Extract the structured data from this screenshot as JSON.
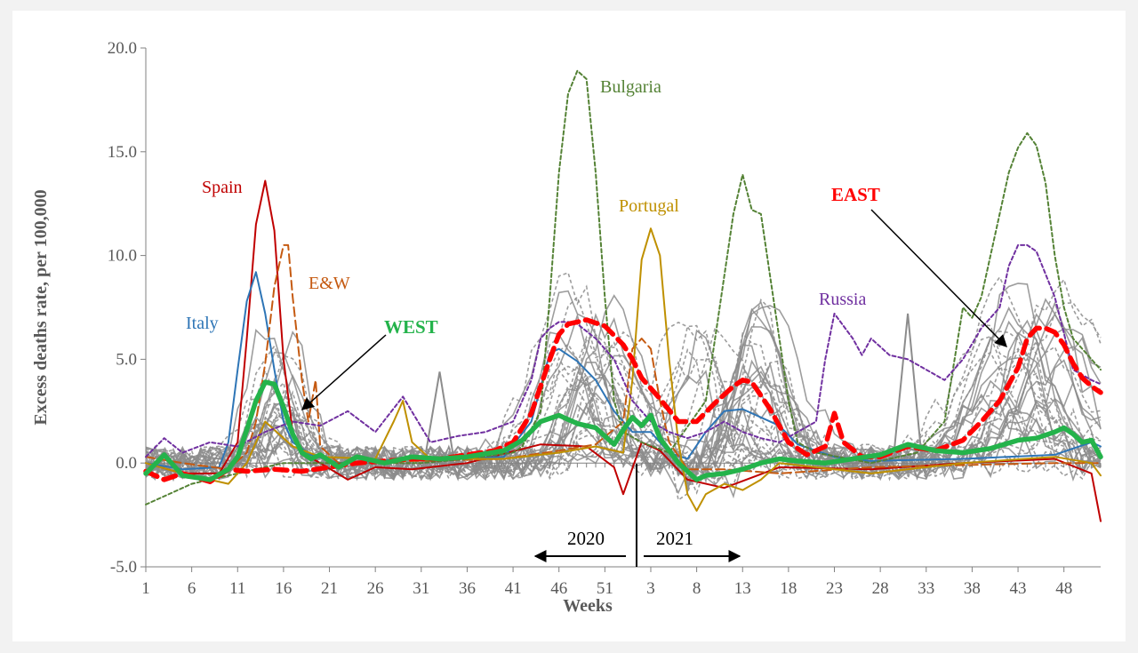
{
  "chart_data": {
    "type": "line",
    "xlabel": "Weeks",
    "ylabel": "Excess deaths rate, per 100,000",
    "ylim": [
      -5,
      20
    ],
    "y_ticks": [
      "-5.0",
      "0.0",
      "5.0",
      "10.0",
      "15.0",
      "20.0"
    ],
    "x_tick_labels": [
      "1",
      "6",
      "11",
      "16",
      "21",
      "26",
      "31",
      "36",
      "41",
      "46",
      "51",
      "3",
      "8",
      "13",
      "18",
      "23",
      "28",
      "33",
      "38",
      "43",
      "48"
    ],
    "x_ticks_at": [
      1,
      6,
      11,
      16,
      21,
      26,
      31,
      36,
      41,
      46,
      51,
      56,
      61,
      66,
      71,
      76,
      81,
      86,
      91,
      96,
      101
    ],
    "x_max": 105,
    "year_split_at": 54,
    "year_labels": [
      "2020",
      "2021"
    ],
    "annotations": {
      "spain": "Spain",
      "italy": "Italy",
      "ew": "E&W",
      "west": "WEST",
      "bulgaria": "Bulgaria",
      "portugal": "Portugal",
      "russia": "Russia",
      "east": "EAST"
    },
    "colors": {
      "background_gray": "#f2f2f2",
      "axis": "#808080",
      "gray_series": "#8c8c8c",
      "spain": "#c00000",
      "italy": "#2e75b6",
      "ew": "#c55a11",
      "west": "#24b34b",
      "east": "#ff0000",
      "bulgaria": "#548235",
      "portugal": "#bf9000",
      "russia": "#7030a0"
    },
    "series": [
      {
        "name": "WEST",
        "style": "thick-solid",
        "x": [
          1,
          3,
          5,
          8,
          10,
          11,
          12,
          13,
          14,
          15,
          16,
          17,
          18,
          19,
          20,
          22,
          24,
          27,
          30,
          33,
          36,
          40,
          42,
          44,
          46,
          48,
          50,
          52,
          53,
          54,
          55,
          56,
          57,
          59,
          61,
          62,
          64,
          66,
          68,
          70,
          72,
          75,
          78,
          81,
          84,
          87,
          90,
          93,
          96,
          98,
          100,
          101,
          102,
          103,
          104,
          105
        ],
        "y": [
          -0.5,
          0.4,
          -0.6,
          -0.8,
          -0.3,
          0.3,
          1.6,
          3.0,
          3.9,
          3.8,
          2.7,
          1.4,
          0.5,
          0.2,
          0.4,
          -0.2,
          0.3,
          0.0,
          0.3,
          0.2,
          0.3,
          0.6,
          1.1,
          2.0,
          2.3,
          1.9,
          1.7,
          0.9,
          1.6,
          2.2,
          1.8,
          2.3,
          1.2,
          0.0,
          -0.8,
          -0.6,
          -0.5,
          -0.3,
          0.0,
          0.2,
          0.1,
          0.0,
          0.2,
          0.4,
          0.9,
          0.6,
          0.5,
          0.7,
          1.1,
          1.2,
          1.5,
          1.7,
          1.4,
          1.0,
          1.1,
          0.3
        ]
      },
      {
        "name": "EAST",
        "style": "thick-dashed",
        "x": [
          1,
          3,
          5,
          8,
          10,
          12,
          15,
          18,
          21,
          24,
          27,
          30,
          33,
          36,
          39,
          41,
          43,
          45,
          46,
          47,
          48,
          49,
          51,
          53,
          54,
          55,
          57,
          59,
          61,
          63,
          65,
          66,
          67,
          69,
          71,
          73,
          75,
          76,
          77,
          79,
          81,
          84,
          87,
          90,
          92,
          94,
          96,
          97,
          98,
          99,
          100,
          101,
          102,
          103,
          104,
          105
        ],
        "y": [
          -0.4,
          -0.8,
          -0.5,
          -0.9,
          -0.3,
          -0.4,
          -0.3,
          -0.4,
          -0.2,
          0.0,
          0.1,
          0.2,
          0.2,
          0.4,
          0.6,
          1.0,
          2.4,
          5.0,
          6.2,
          6.7,
          6.8,
          6.9,
          6.6,
          5.7,
          5.0,
          4.1,
          3.1,
          2.0,
          2.0,
          2.9,
          3.7,
          4.0,
          3.9,
          2.6,
          1.0,
          0.4,
          0.8,
          2.4,
          1.0,
          0.3,
          0.3,
          0.8,
          0.6,
          1.1,
          2.0,
          3.0,
          4.6,
          6.0,
          6.5,
          6.5,
          6.3,
          5.7,
          4.8,
          4.1,
          3.7,
          3.4
        ]
      },
      {
        "name": "Spain",
        "style": "solid",
        "x": [
          1,
          5,
          9,
          11,
          12,
          13,
          14,
          15,
          16,
          17,
          18,
          20,
          23,
          26,
          30,
          36,
          44,
          49,
          52,
          53,
          55,
          57,
          60,
          64,
          70,
          80,
          90,
          100,
          104,
          105
        ],
        "y": [
          0,
          -0.5,
          -0.5,
          1.0,
          6.0,
          11.5,
          13.6,
          11.2,
          5.0,
          1.5,
          0.5,
          0.0,
          -0.8,
          -0.2,
          -0.3,
          0.0,
          0.9,
          0.8,
          -0.2,
          -1.5,
          1.0,
          0.6,
          -0.8,
          -1.2,
          -0.2,
          -0.3,
          0.0,
          0.2,
          -0.5,
          -2.8
        ]
      },
      {
        "name": "Italy",
        "style": "solid",
        "x": [
          1,
          5,
          9,
          10,
          11,
          12,
          13,
          14,
          15,
          16,
          17,
          19,
          22,
          30,
          40,
          43,
          45,
          46,
          48,
          50,
          52,
          54,
          56,
          58,
          60,
          62,
          64,
          66,
          68,
          70,
          72,
          76,
          80,
          90,
          100,
          104,
          105
        ],
        "y": [
          0,
          -0.3,
          -0.2,
          1.0,
          4.5,
          7.8,
          9.2,
          7.2,
          4.5,
          2.0,
          1.0,
          0.4,
          0.0,
          0.2,
          0.3,
          2.0,
          5.3,
          5.5,
          4.9,
          4.0,
          2.5,
          1.5,
          1.5,
          0.5,
          0.2,
          1.5,
          2.5,
          2.6,
          2.2,
          1.8,
          0.9,
          0.3,
          0.1,
          0.2,
          0.4,
          1.0,
          0.8
        ]
      },
      {
        "name": "E&W",
        "style": "long-dashed",
        "x": [
          1,
          5,
          10,
          12,
          13,
          14,
          15,
          16,
          16.5,
          17,
          18,
          18.7,
          19.5,
          20,
          22,
          30,
          40,
          46,
          50,
          53,
          54,
          55,
          56,
          57,
          58,
          60,
          64,
          70,
          80,
          90,
          100,
          105
        ],
        "y": [
          0.3,
          0,
          -0.3,
          0.5,
          2.0,
          4.8,
          8.5,
          10.5,
          10.5,
          8.0,
          4.0,
          2.0,
          4.0,
          0.8,
          0.0,
          0.1,
          0.2,
          0.6,
          0.9,
          2.0,
          5.5,
          6.0,
          5.5,
          3.0,
          1.0,
          -0.3,
          -0.3,
          -0.5,
          -0.2,
          -0.1,
          0.0,
          0.0
        ]
      },
      {
        "name": "Bulgaria",
        "style": "dashed",
        "x": [
          1,
          6,
          11,
          16,
          21,
          26,
          31,
          36,
          41,
          42,
          44,
          45,
          46,
          47,
          48,
          49,
          50,
          51,
          52,
          53,
          55,
          58,
          62,
          63,
          64,
          65,
          66,
          67,
          68,
          69,
          70,
          71,
          72,
          74,
          80,
          85,
          88,
          90,
          91,
          92,
          94,
          95,
          96,
          97,
          98,
          99,
          100,
          101,
          102,
          104,
          105
        ],
        "y": [
          -2.0,
          -1.0,
          -0.5,
          0.0,
          0.0,
          0.0,
          0.0,
          0.2,
          0.5,
          0.8,
          2.5,
          8.0,
          14.0,
          17.8,
          18.9,
          18.5,
          14.0,
          8.0,
          3.0,
          1.5,
          1.0,
          0.5,
          3.0,
          6.0,
          9.0,
          12.0,
          13.9,
          12.2,
          12.0,
          9.0,
          6.0,
          3.0,
          1.0,
          0.5,
          0.0,
          0.5,
          2.0,
          7.5,
          7.0,
          8.0,
          12.0,
          14.0,
          15.2,
          15.9,
          15.3,
          13.5,
          10.0,
          7.5,
          6.0,
          5.0,
          4.5
        ]
      },
      {
        "name": "Portugal",
        "style": "solid",
        "x": [
          1,
          5,
          10,
          12,
          14,
          17,
          20,
          26,
          28,
          29,
          30,
          32,
          40,
          46,
          50,
          53,
          54,
          55,
          56,
          57,
          58,
          59,
          60,
          61,
          62,
          64,
          66,
          68,
          70,
          80,
          90,
          100,
          104,
          105
        ],
        "y": [
          0,
          -0.5,
          -1.0,
          0.0,
          2.0,
          0.8,
          0.3,
          0.2,
          2.0,
          3.0,
          1.0,
          0.2,
          0.2,
          0.5,
          0.8,
          0.5,
          4.0,
          9.8,
          11.3,
          10.0,
          5.0,
          1.0,
          -1.5,
          -2.3,
          -1.5,
          -1.0,
          -1.3,
          -0.8,
          0.0,
          -0.5,
          0.0,
          0.3,
          0.0,
          -0.6
        ]
      },
      {
        "name": "Russia",
        "style": "dashed",
        "x": [
          1,
          3,
          5,
          8,
          11,
          14,
          17,
          20,
          23,
          26,
          29,
          32,
          35,
          38,
          41,
          43,
          44,
          45,
          46,
          47,
          48,
          50,
          52,
          54,
          56,
          58,
          60,
          62,
          64,
          66,
          68,
          70,
          72,
          74,
          75,
          76,
          78,
          79,
          80,
          82,
          84,
          86,
          88,
          90,
          92,
          94,
          95,
          96,
          97,
          98,
          100,
          102,
          104,
          105
        ],
        "y": [
          0.3,
          1.2,
          0.5,
          1.0,
          0.8,
          1.5,
          2.0,
          1.8,
          2.5,
          1.5,
          3.2,
          1.0,
          1.3,
          1.5,
          2.0,
          4.0,
          6.0,
          6.5,
          6.8,
          6.8,
          6.7,
          6.0,
          5.0,
          3.0,
          2.0,
          1.5,
          1.2,
          1.5,
          2.0,
          1.5,
          1.2,
          1.0,
          1.5,
          2.0,
          5.0,
          7.2,
          6.0,
          5.2,
          6.0,
          5.2,
          5.0,
          4.5,
          4.0,
          5.0,
          6.5,
          7.5,
          9.5,
          10.5,
          10.5,
          10.2,
          8.0,
          4.5,
          4.0,
          3.8
        ]
      }
    ]
  }
}
